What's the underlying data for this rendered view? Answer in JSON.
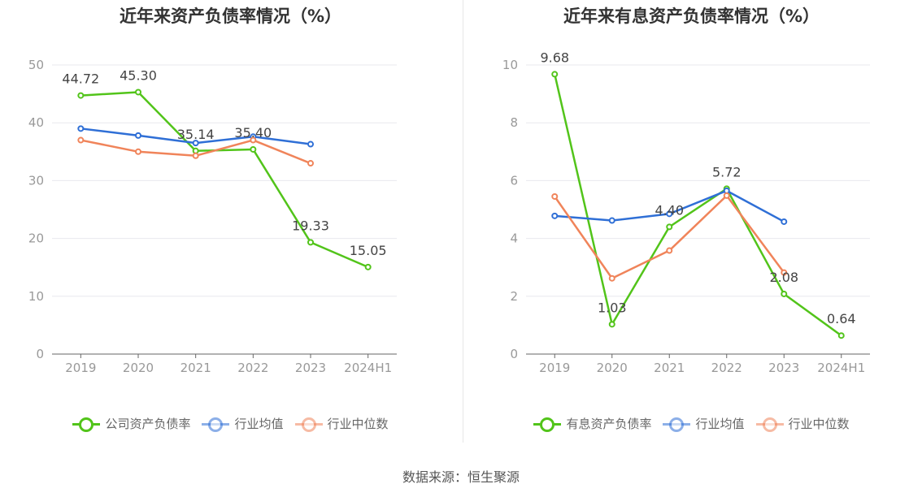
{
  "source_label": "数据来源：恒生聚源",
  "chart_data": [
    {
      "type": "line",
      "title": "近年来资产负债率情况（%）",
      "categories": [
        "2019",
        "2020",
        "2021",
        "2022",
        "2023",
        "2024H1"
      ],
      "ylim": [
        0,
        50
      ],
      "yticks": [
        0,
        10,
        20,
        30,
        40,
        50
      ],
      "grid": true,
      "legend_position": "bottom",
      "series": [
        {
          "name": "公司资产负债率",
          "color": "#52c41a",
          "values": [
            44.72,
            45.3,
            35.14,
            35.4,
            19.33,
            15.05
          ],
          "labels": [
            "44.72",
            "45.30",
            "35.14",
            "35.40",
            "19.33",
            "15.05"
          ],
          "show_labels": true
        },
        {
          "name": "行业均值",
          "color": "#2f6fd6",
          "values": [
            39.0,
            37.8,
            36.5,
            37.6,
            36.3,
            null
          ],
          "show_labels": false
        },
        {
          "name": "行业中位数",
          "color": "#f0845a",
          "values": [
            37.0,
            35.0,
            34.3,
            37.0,
            33.0,
            null
          ],
          "show_labels": false
        }
      ]
    },
    {
      "type": "line",
      "title": "近年来有息资产负债率情况（%）",
      "categories": [
        "2019",
        "2020",
        "2021",
        "2022",
        "2023",
        "2024H1"
      ],
      "ylim": [
        0,
        10
      ],
      "yticks": [
        0,
        2,
        4,
        6,
        8,
        10
      ],
      "grid": true,
      "legend_position": "bottom",
      "series": [
        {
          "name": "有息资产负债率",
          "color": "#52c41a",
          "values": [
            9.68,
            1.03,
            4.4,
            5.72,
            2.08,
            0.64
          ],
          "labels": [
            "9.68",
            "1.03",
            "4.40",
            "5.72",
            "2.08",
            "0.64"
          ],
          "show_labels": true
        },
        {
          "name": "行业均值",
          "color": "#2f6fd6",
          "values": [
            4.78,
            4.62,
            4.85,
            5.65,
            4.58,
            null
          ],
          "show_labels": false
        },
        {
          "name": "行业中位数",
          "color": "#f0845a",
          "values": [
            5.45,
            2.62,
            3.58,
            5.48,
            2.82,
            null
          ],
          "show_labels": false
        }
      ]
    }
  ]
}
